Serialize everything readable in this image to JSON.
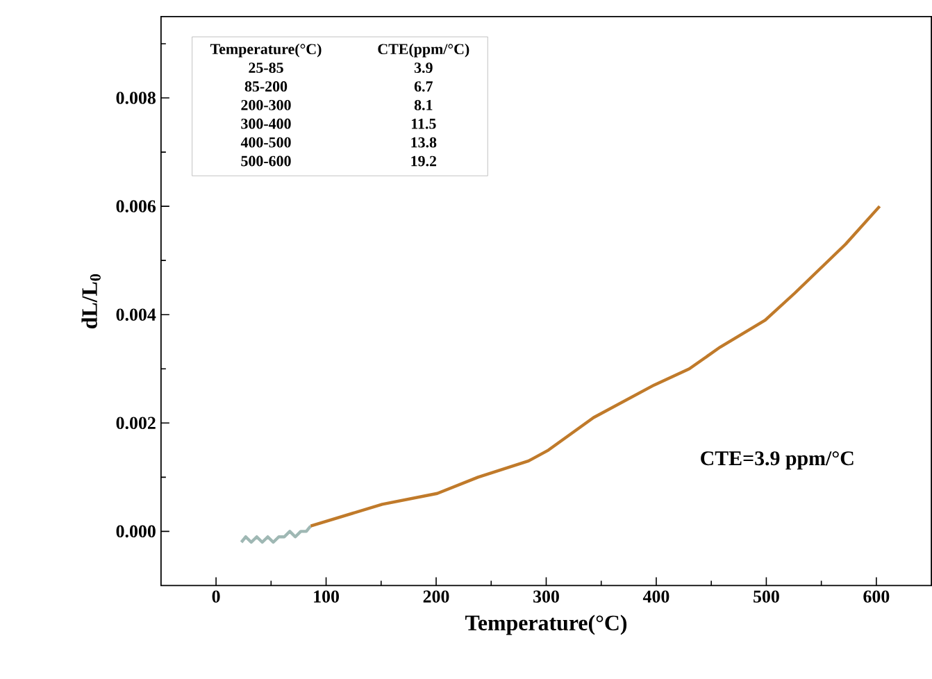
{
  "chart_data": {
    "type": "line",
    "xlabel": "Temperature(°C)",
    "ylabel": "dL/L$_{0}$",
    "series": [
      {
        "color": "#9fb8b4",
        "x": [
          23,
          27,
          32,
          37,
          42,
          47,
          52,
          57,
          62,
          67,
          72,
          77,
          82,
          86
        ],
        "values": [
          -0.0002,
          -0.0001,
          -0.0002,
          -0.0001,
          -0.0002,
          -0.0001,
          -0.0002,
          -0.0001,
          -0.0001,
          0.0,
          -0.0001,
          0.0,
          0.0,
          0.0001
        ]
      },
      {
        "color": "#c07a2a",
        "x": [
          86,
          151,
          201,
          238,
          284,
          302,
          343,
          398,
          430,
          458,
          499,
          526,
          572,
          603
        ],
        "values": [
          0.0001,
          0.0005,
          0.0007,
          0.001,
          0.0013,
          0.0015,
          0.0021,
          0.0027,
          0.003,
          0.0034,
          0.0039,
          0.0044,
          0.0053,
          0.006
        ]
      }
    ],
    "xlim": [
      -50,
      650
    ],
    "ylim": [
      -0.001,
      0.0095
    ],
    "xticks": [
      0,
      {
        "value": 50,
        "label": null
      },
      100,
      {
        "value": 150,
        "label": null
      },
      200,
      {
        "value": 250,
        "label": null
      },
      300,
      {
        "value": 350,
        "label": null
      },
      400,
      {
        "value": 450,
        "label": null
      },
      500,
      {
        "value": 550,
        "label": null
      },
      600
    ],
    "yticks": [
      {
        "value": 0,
        "label": "0.000"
      },
      {
        "value": 0.001,
        "label": null
      },
      {
        "value": 0.002,
        "label": "0.002"
      },
      {
        "value": 0.003,
        "label": null
      },
      {
        "value": 0.004,
        "label": "0.004"
      },
      {
        "value": 0.005,
        "label": null
      },
      {
        "value": 0.006,
        "label": "0.006"
      },
      {
        "value": 0.007,
        "label": null
      },
      {
        "value": 0.008,
        "label": "0.008"
      },
      {
        "value": 0.009,
        "label": null
      }
    ],
    "grid": false,
    "line_style": "solid",
    "annotations": [
      "Temperature(°C)",
      "CTE(ppm/°C)",
      "25-85",
      "3.9",
      "85-200",
      "6.7",
      "200-300",
      "8.1",
      "300-400",
      "11.5",
      "400-500",
      "13.8",
      "500-600",
      "19.2",
      "CTE=3.9 ppm/°C"
    ]
  }
}
